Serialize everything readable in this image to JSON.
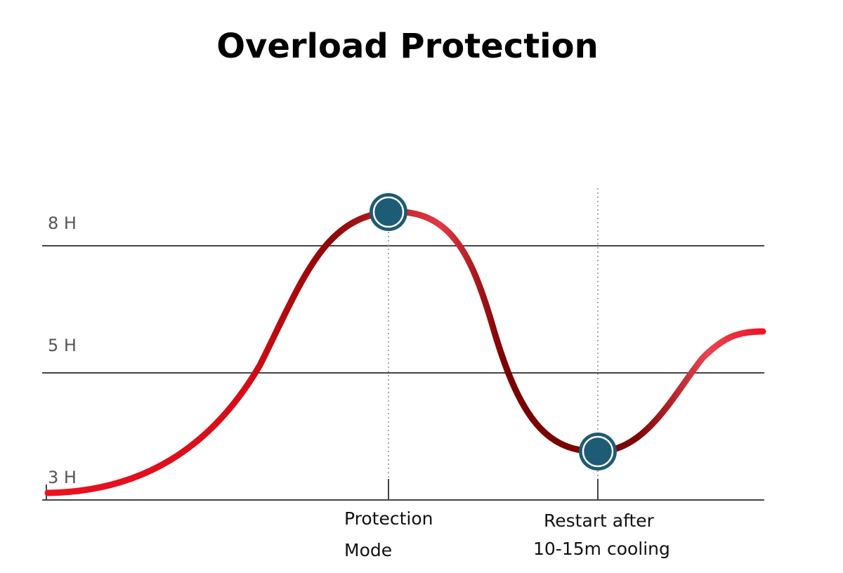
{
  "title": "Overload Protection",
  "levels": [
    "8 H",
    "5 H",
    "3 H"
  ],
  "annotations": [
    [
      "Protection",
      "Mode"
    ],
    [
      "Restart after",
      "10-15m cooling"
    ]
  ]
}
